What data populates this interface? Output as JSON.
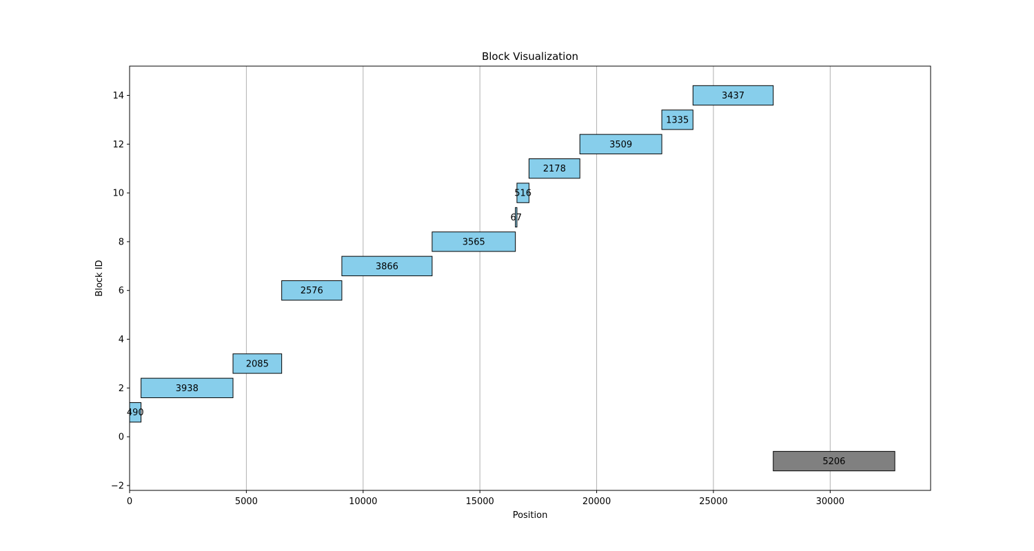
{
  "chart_data": {
    "type": "bar",
    "orientation": "horizontal-ranges",
    "title": "Block Visualization",
    "xlabel": "Position",
    "ylabel": "Block ID",
    "xlim": [
      0,
      34300
    ],
    "ylim": [
      -2.2,
      15.2
    ],
    "x_ticks": [
      0,
      5000,
      10000,
      15000,
      20000,
      25000,
      30000
    ],
    "y_ticks": [
      -2,
      0,
      2,
      4,
      6,
      8,
      10,
      12,
      14
    ],
    "grid": "vertical",
    "legend": "none",
    "colors": {
      "block": "#87CEEB",
      "free": "#808080",
      "edge": "#000000",
      "grid": "#b0b0b0"
    },
    "blocks": [
      {
        "id": 1,
        "start": 0,
        "size": 490,
        "label": "490",
        "kind": "block"
      },
      {
        "id": 2,
        "start": 490,
        "size": 3938,
        "label": "3938",
        "kind": "block"
      },
      {
        "id": 3,
        "start": 4428,
        "size": 2085,
        "label": "2085",
        "kind": "block"
      },
      {
        "id": 6,
        "start": 6513,
        "size": 2576,
        "label": "2576",
        "kind": "block"
      },
      {
        "id": 7,
        "start": 9089,
        "size": 3866,
        "label": "3866",
        "kind": "block"
      },
      {
        "id": 8,
        "start": 12955,
        "size": 3565,
        "label": "3565",
        "kind": "block"
      },
      {
        "id": 9,
        "start": 16520,
        "size": 67,
        "label": "67",
        "kind": "block"
      },
      {
        "id": 10,
        "start": 16587,
        "size": 516,
        "label": "516",
        "kind": "block"
      },
      {
        "id": 11,
        "start": 17103,
        "size": 2178,
        "label": "2178",
        "kind": "block"
      },
      {
        "id": 12,
        "start": 19281,
        "size": 3509,
        "label": "3509",
        "kind": "block"
      },
      {
        "id": 13,
        "start": 22790,
        "size": 1335,
        "label": "1335",
        "kind": "block"
      },
      {
        "id": 14,
        "start": 24125,
        "size": 3437,
        "label": "3437",
        "kind": "block"
      },
      {
        "id": -1,
        "start": 27562,
        "size": 5206,
        "label": "5206",
        "kind": "free"
      }
    ]
  }
}
